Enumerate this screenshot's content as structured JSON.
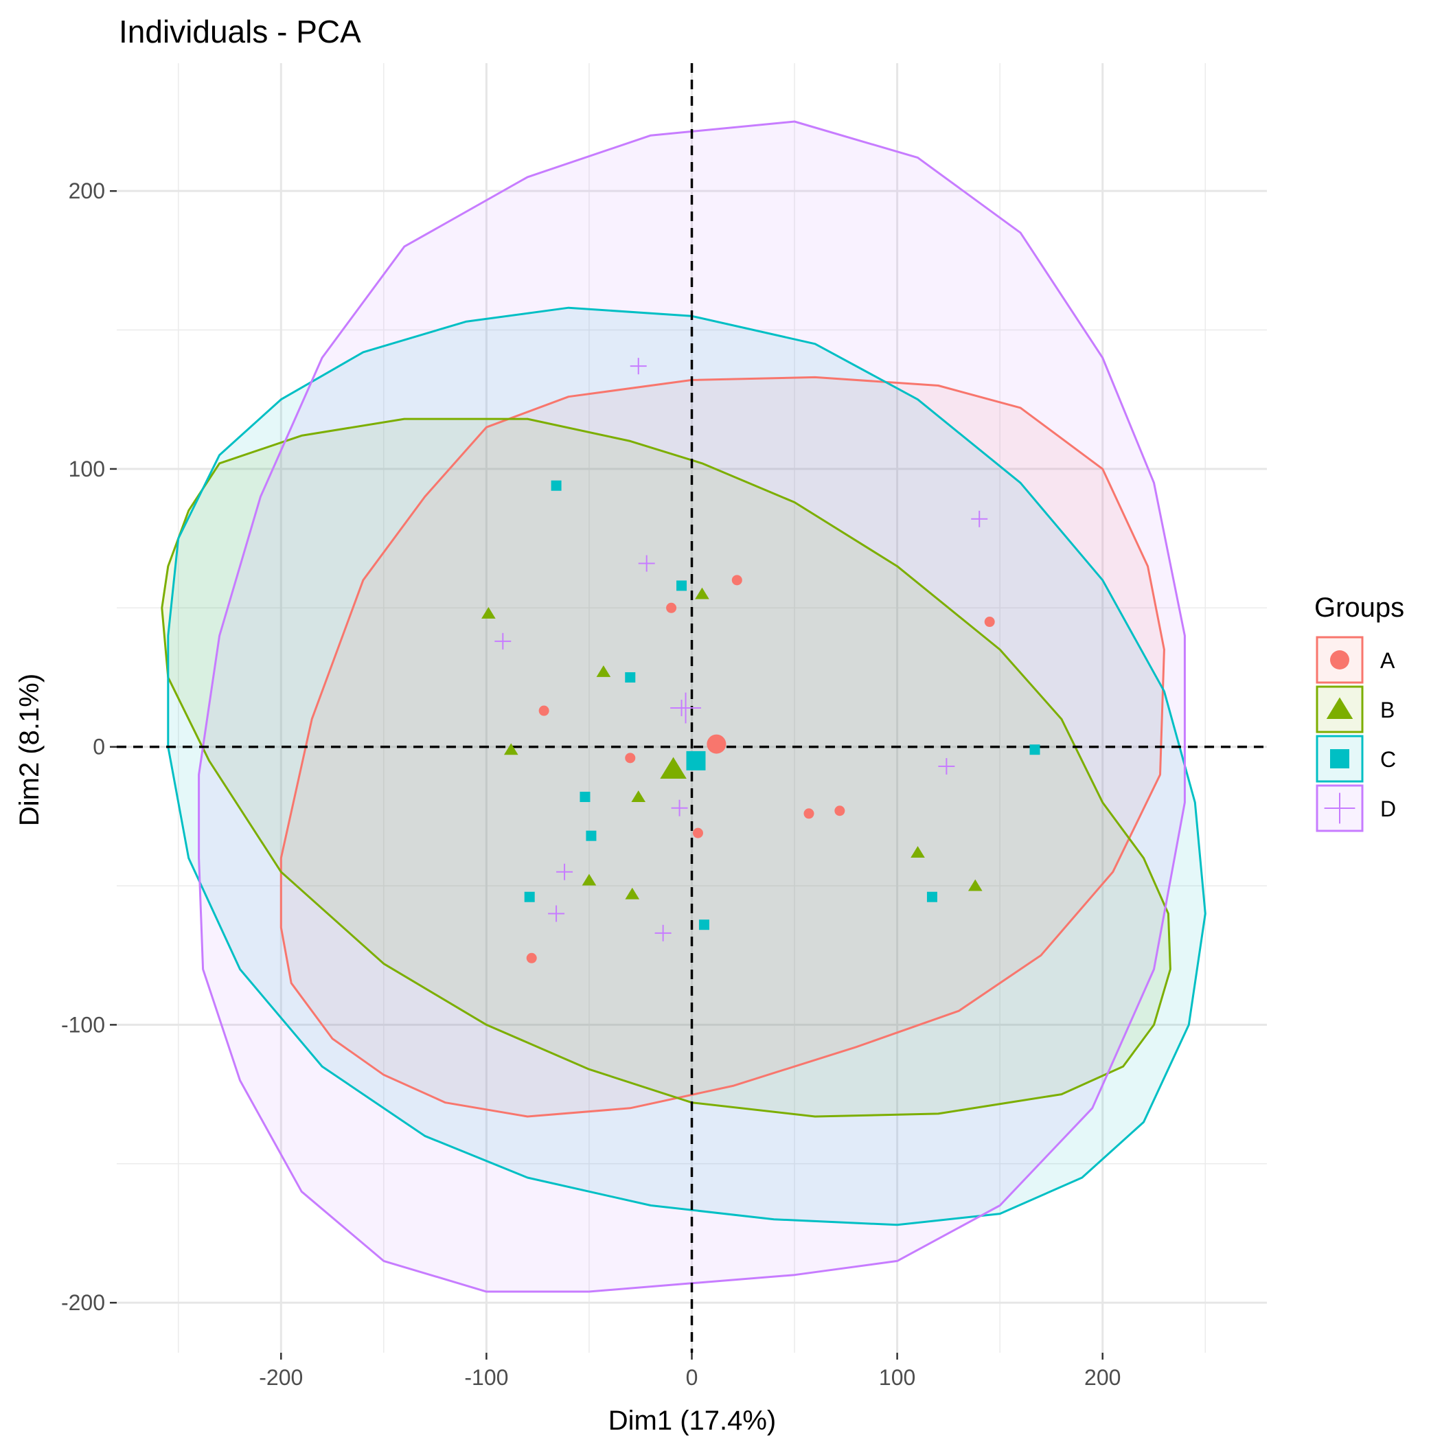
{
  "chart_data": {
    "type": "scatter",
    "title": "Individuals - PCA",
    "xlabel": "Dim1 (17.4%)",
    "ylabel": "Dim2 (8.1%)",
    "xlim": [
      -280,
      280
    ],
    "ylim": [
      -218,
      246
    ],
    "x_ticks": [
      -200,
      -100,
      0,
      100,
      200
    ],
    "y_ticks": [
      -200,
      -100,
      0,
      100,
      200
    ],
    "grid": true,
    "reference_lines": {
      "x": 0,
      "y": 0,
      "style": "dashed"
    },
    "legend": {
      "title": "Groups",
      "placement": "right"
    },
    "series": [
      {
        "name": "A",
        "color": "#F8766D",
        "fill": "#F8766D",
        "shape": "circle",
        "points": [
          [
            22,
            60
          ],
          [
            -10,
            50
          ],
          [
            145,
            45
          ],
          [
            -72,
            13
          ],
          [
            -30,
            -4
          ],
          [
            3,
            -31
          ],
          [
            57,
            -24
          ],
          [
            72,
            -23
          ],
          [
            -78,
            -76
          ]
        ],
        "centroid": [
          12,
          1
        ],
        "ellipse": [
          [
            -200,
            -40
          ],
          [
            -185,
            10
          ],
          [
            -160,
            60
          ],
          [
            -130,
            90
          ],
          [
            -100,
            115
          ],
          [
            -60,
            126
          ],
          [
            0,
            132
          ],
          [
            60,
            133
          ],
          [
            120,
            130
          ],
          [
            160,
            122
          ],
          [
            200,
            100
          ],
          [
            222,
            65
          ],
          [
            230,
            35
          ],
          [
            228,
            -10
          ],
          [
            205,
            -45
          ],
          [
            170,
            -75
          ],
          [
            130,
            -95
          ],
          [
            80,
            -108
          ],
          [
            20,
            -122
          ],
          [
            -30,
            -130
          ],
          [
            -80,
            -133
          ],
          [
            -120,
            -128
          ],
          [
            -150,
            -118
          ],
          [
            -175,
            -105
          ],
          [
            -195,
            -85
          ],
          [
            -200,
            -65
          ]
        ]
      },
      {
        "name": "B",
        "color": "#7CAE00",
        "fill": "#7CAE00",
        "shape": "triangle",
        "points": [
          [
            -99,
            48
          ],
          [
            5,
            55
          ],
          [
            -43,
            27
          ],
          [
            -88,
            -1
          ],
          [
            -26,
            -18
          ],
          [
            -50,
            -48
          ],
          [
            -29,
            -53
          ],
          [
            110,
            -38
          ],
          [
            138,
            -50
          ]
        ],
        "centroid": [
          -9,
          -8
        ],
        "ellipse": [
          [
            -255,
            65
          ],
          [
            -245,
            85
          ],
          [
            -230,
            102
          ],
          [
            -190,
            112
          ],
          [
            -140,
            118
          ],
          [
            -80,
            118
          ],
          [
            -30,
            110
          ],
          [
            5,
            102
          ],
          [
            50,
            88
          ],
          [
            100,
            65
          ],
          [
            150,
            35
          ],
          [
            180,
            10
          ],
          [
            200,
            -20
          ],
          [
            220,
            -40
          ],
          [
            232,
            -60
          ],
          [
            233,
            -80
          ],
          [
            225,
            -100
          ],
          [
            210,
            -115
          ],
          [
            180,
            -125
          ],
          [
            120,
            -132
          ],
          [
            60,
            -133
          ],
          [
            0,
            -128
          ],
          [
            -50,
            -116
          ],
          [
            -100,
            -100
          ],
          [
            -150,
            -78
          ],
          [
            -200,
            -45
          ],
          [
            -235,
            -5
          ],
          [
            -255,
            25
          ],
          [
            -258,
            50
          ]
        ]
      },
      {
        "name": "C",
        "color": "#00BFC4",
        "fill": "#00BFC4",
        "shape": "square",
        "points": [
          [
            -66,
            94
          ],
          [
            -5,
            58
          ],
          [
            -30,
            25
          ],
          [
            167,
            -1
          ],
          [
            -52,
            -18
          ],
          [
            -49,
            -32
          ],
          [
            -79,
            -54
          ],
          [
            117,
            -54
          ],
          [
            6,
            -64
          ]
        ],
        "centroid": [
          2,
          -5
        ],
        "ellipse": [
          [
            -255,
            40
          ],
          [
            -250,
            75
          ],
          [
            -230,
            105
          ],
          [
            -200,
            125
          ],
          [
            -160,
            142
          ],
          [
            -110,
            153
          ],
          [
            -60,
            158
          ],
          [
            0,
            155
          ],
          [
            60,
            145
          ],
          [
            110,
            125
          ],
          [
            160,
            95
          ],
          [
            200,
            60
          ],
          [
            230,
            20
          ],
          [
            245,
            -20
          ],
          [
            250,
            -60
          ],
          [
            242,
            -100
          ],
          [
            220,
            -135
          ],
          [
            190,
            -155
          ],
          [
            150,
            -168
          ],
          [
            100,
            -172
          ],
          [
            40,
            -170
          ],
          [
            -20,
            -165
          ],
          [
            -80,
            -155
          ],
          [
            -130,
            -140
          ],
          [
            -180,
            -115
          ],
          [
            -220,
            -80
          ],
          [
            -245,
            -40
          ],
          [
            -255,
            0
          ]
        ]
      },
      {
        "name": "D",
        "color": "#C77CFF",
        "fill": "#C77CFF",
        "shape": "plus",
        "points": [
          [
            -26,
            137
          ],
          [
            140,
            82
          ],
          [
            -22,
            66
          ],
          [
            -92,
            38
          ],
          [
            -5,
            14
          ],
          [
            124,
            -7
          ],
          [
            -6,
            -22
          ],
          [
            -62,
            -45
          ],
          [
            -66,
            -60
          ],
          [
            -14,
            -67
          ]
        ],
        "centroid": [
          -3,
          14
        ],
        "ellipse": [
          [
            -240,
            -40
          ],
          [
            -240,
            -10
          ],
          [
            -230,
            40
          ],
          [
            -210,
            90
          ],
          [
            -180,
            140
          ],
          [
            -140,
            180
          ],
          [
            -80,
            205
          ],
          [
            -20,
            220
          ],
          [
            50,
            225
          ],
          [
            110,
            212
          ],
          [
            160,
            185
          ],
          [
            200,
            140
          ],
          [
            225,
            95
          ],
          [
            240,
            40
          ],
          [
            240,
            -20
          ],
          [
            225,
            -80
          ],
          [
            195,
            -130
          ],
          [
            150,
            -165
          ],
          [
            100,
            -185
          ],
          [
            50,
            -190
          ],
          [
            0,
            -193
          ],
          [
            -50,
            -196
          ],
          [
            -100,
            -196
          ],
          [
            -150,
            -185
          ],
          [
            -190,
            -160
          ],
          [
            -220,
            -120
          ],
          [
            -238,
            -80
          ]
        ]
      }
    ]
  }
}
